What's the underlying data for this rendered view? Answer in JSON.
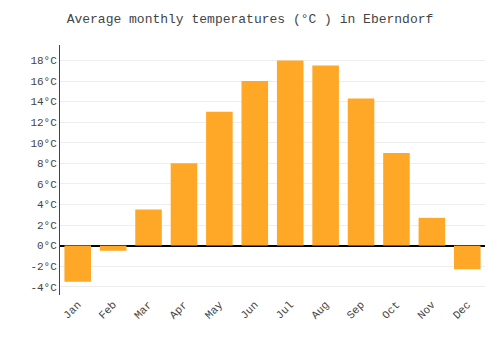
{
  "chart_data": {
    "type": "bar",
    "title": "Average monthly temperatures (°C ) in Eberndorf",
    "categories": [
      "Jan",
      "Feb",
      "Mar",
      "Apr",
      "May",
      "Jun",
      "Jul",
      "Aug",
      "Sep",
      "Oct",
      "Nov",
      "Dec"
    ],
    "values": [
      -3.5,
      -0.5,
      3.5,
      8.0,
      13.0,
      16.0,
      18.0,
      17.5,
      14.3,
      9.0,
      2.7,
      -2.3
    ],
    "color": "#FFA726",
    "ylim": [
      -4.8,
      19.5
    ],
    "yticks": [
      {
        "value": -4,
        "label": "-4°C"
      },
      {
        "value": -2,
        "label": "-2°C"
      },
      {
        "value": 0,
        "label": "0°C"
      },
      {
        "value": 2,
        "label": "2°C"
      },
      {
        "value": 4,
        "label": "4°C"
      },
      {
        "value": 6,
        "label": "6°C"
      },
      {
        "value": 8,
        "label": "8°C"
      },
      {
        "value": 10,
        "label": "10°C"
      },
      {
        "value": 12,
        "label": "12°C"
      },
      {
        "value": 14,
        "label": "14°C"
      },
      {
        "value": 16,
        "label": "16°C"
      },
      {
        "value": 18,
        "label": "18°C"
      }
    ],
    "grid": true
  }
}
